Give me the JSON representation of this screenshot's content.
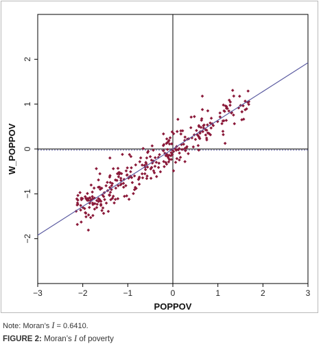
{
  "chart_data": {
    "type": "scatter",
    "title": "",
    "xlabel": "POPPOV",
    "ylabel": "W_POPPOV",
    "xlim": [
      -3,
      3
    ],
    "ylim": [
      -3,
      3
    ],
    "x_ticks": [
      "−3",
      "−2",
      "−1",
      "0",
      "1",
      "2",
      "3"
    ],
    "y_ticks": [
      "−2",
      "−1",
      "0",
      "1",
      "2"
    ],
    "reference_lines": {
      "x": 0,
      "y": 0
    },
    "regression_line": {
      "slope": 0.641,
      "intercept": 0
    },
    "point_color": "#8b1a3a",
    "line_color": "#5a5aa0",
    "legend": "none",
    "grid": false,
    "seed": 7,
    "n_points": 330
  },
  "note": {
    "prefix": "Note: Moran’s ",
    "symbol": "I",
    "suffix": " = 0.6410."
  },
  "caption": {
    "label": "FIGURE 2:",
    "prefix": " Moran’s ",
    "symbol": "I",
    "suffix": " of poverty"
  }
}
